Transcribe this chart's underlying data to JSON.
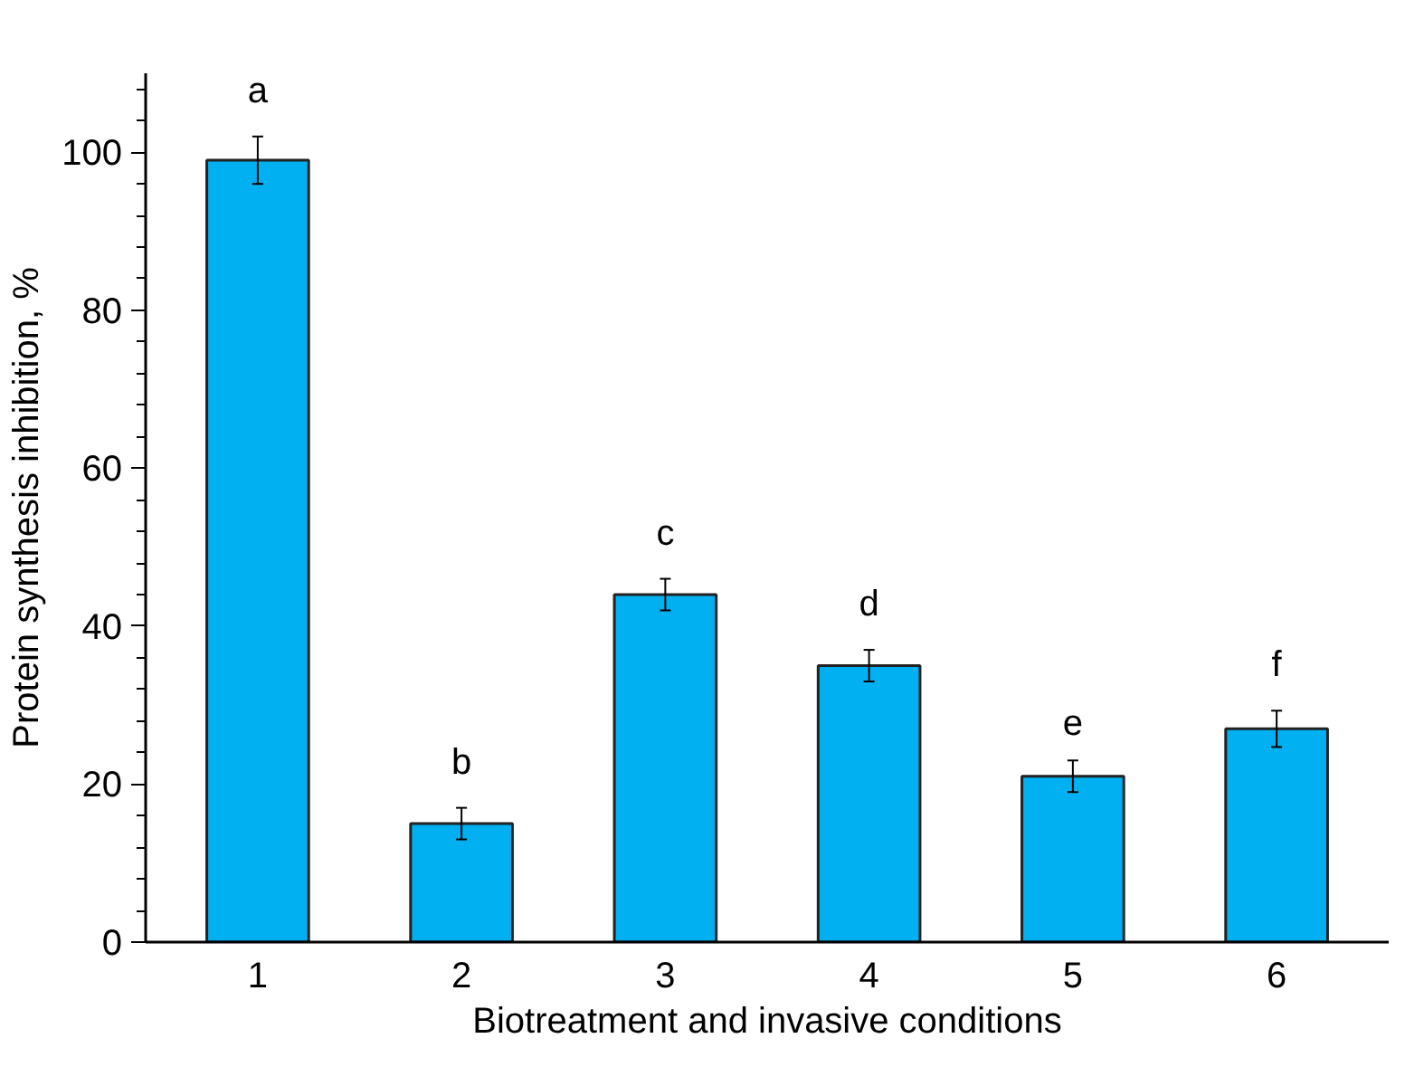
{
  "chart_data": {
    "type": "bar",
    "xlabel": "Biotreatment and invasive conditions",
    "ylabel": "Protein synthesis inhibition, %",
    "categories": [
      "1",
      "2",
      "3",
      "4",
      "5",
      "6"
    ],
    "values": [
      99,
      15,
      44,
      35,
      21,
      27
    ],
    "errors": [
      3,
      2,
      2,
      2,
      2,
      2.3
    ],
    "color": "#00b0f0",
    "ylim": [
      0,
      110
    ],
    "yticks": [
      0,
      {
        "value": 4,
        "label": null
      },
      {
        "value": 8,
        "label": null
      },
      {
        "value": 12,
        "label": null
      },
      {
        "value": 16,
        "label": null
      },
      20,
      {
        "value": 24,
        "label": null
      },
      {
        "value": 28,
        "label": null
      },
      {
        "value": 32,
        "label": null
      },
      {
        "value": 36,
        "label": null
      },
      40,
      {
        "value": 44,
        "label": null
      },
      {
        "value": 48,
        "label": null
      },
      {
        "value": 52,
        "label": null
      },
      {
        "value": 56,
        "label": null
      },
      60,
      {
        "value": 64,
        "label": null
      },
      {
        "value": 68,
        "label": null
      },
      {
        "value": 72,
        "label": null
      },
      {
        "value": 76,
        "label": null
      },
      80,
      {
        "value": 84,
        "label": null
      },
      {
        "value": 88,
        "label": null
      },
      {
        "value": 92,
        "label": null
      },
      {
        "value": 96,
        "label": null
      },
      100,
      {
        "value": 104,
        "label": null
      },
      {
        "value": 108,
        "label": null
      }
    ],
    "annotations": [
      "a",
      "b",
      "c",
      "d",
      "e",
      "f"
    ],
    "grid": false
  }
}
